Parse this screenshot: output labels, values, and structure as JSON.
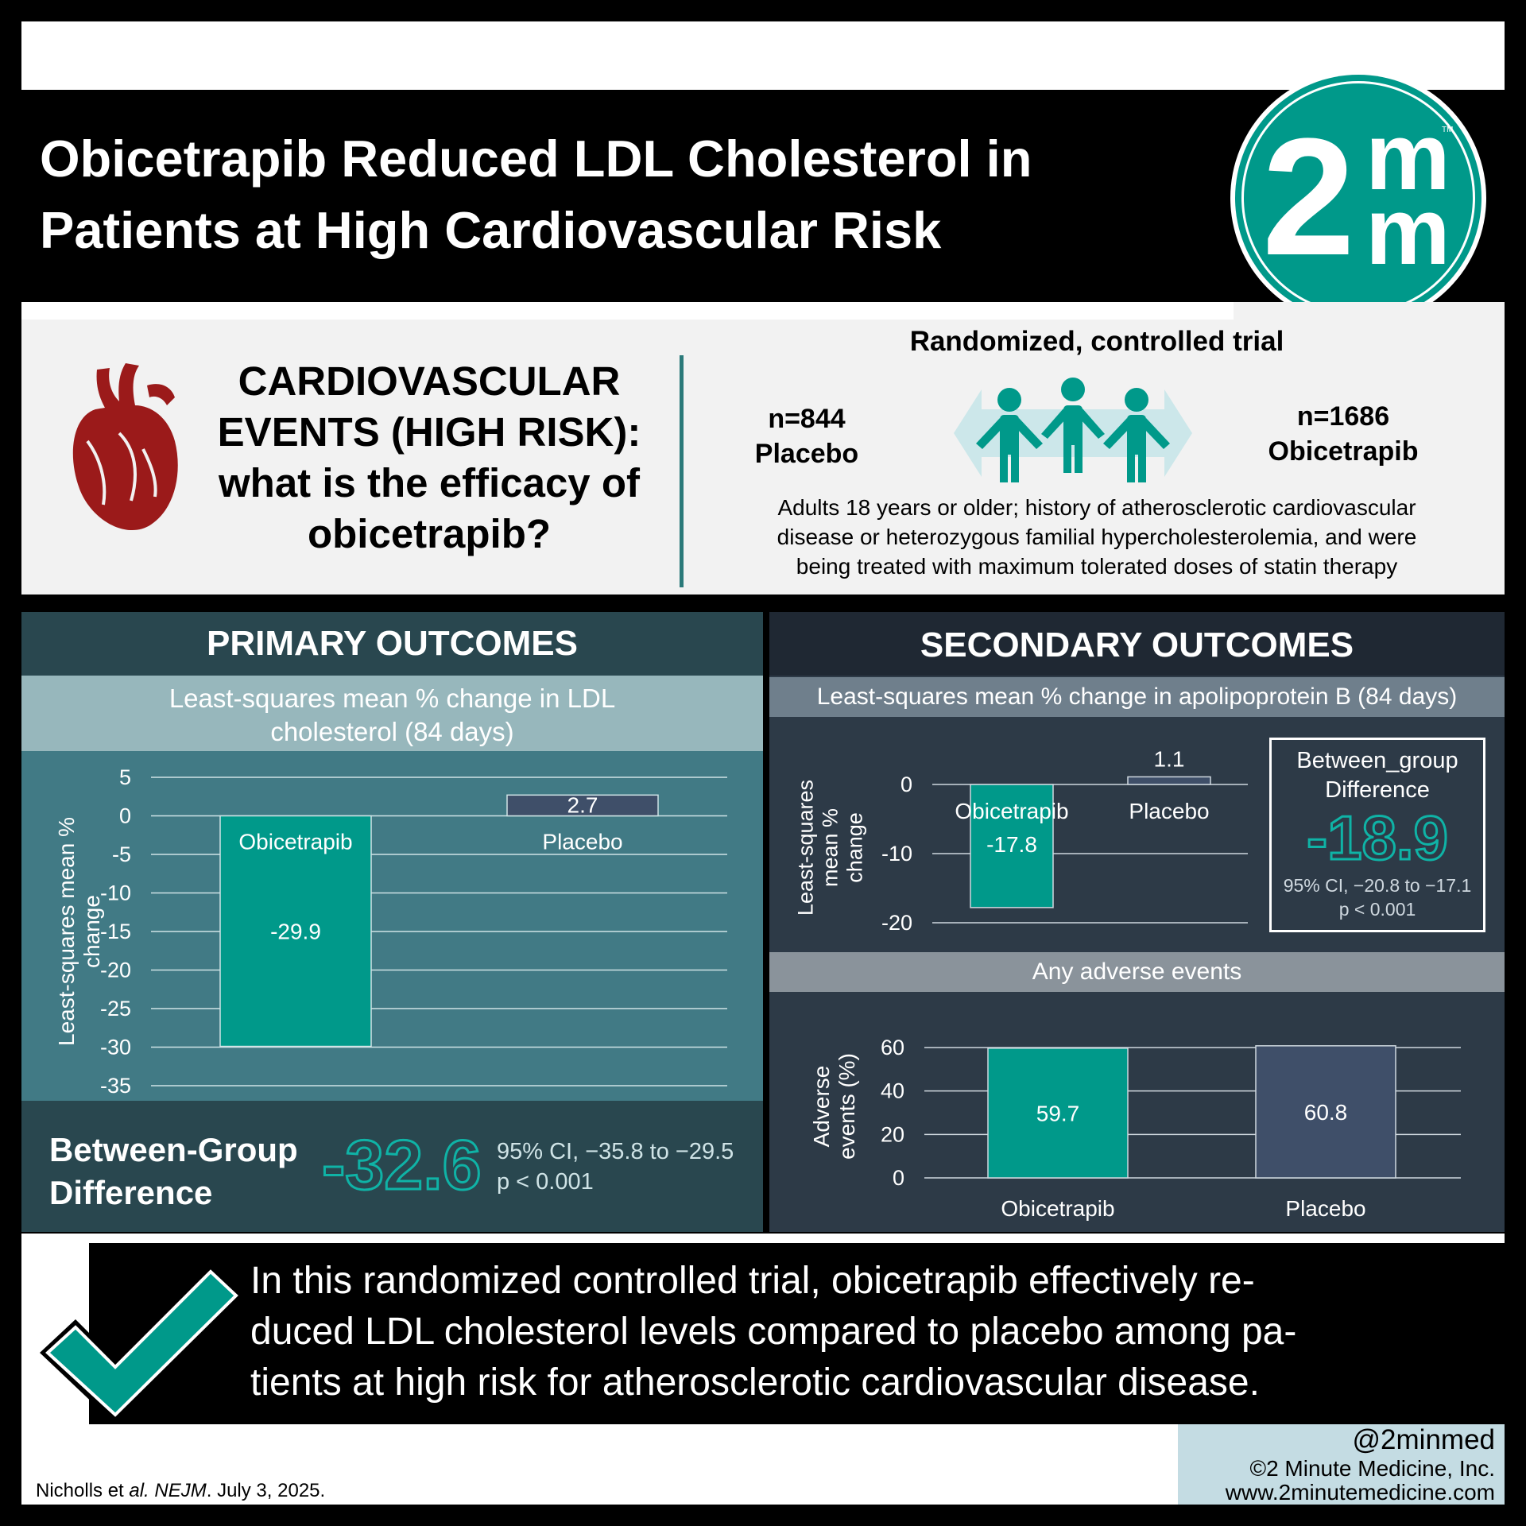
{
  "header": {
    "title_line1": "Obicetrapib Reduced LDL Cholesterol in",
    "title_line2": "Patients at High Cardiovascular Risk",
    "logo_main": "2",
    "logo_m_top": "m",
    "logo_m_bottom": "m",
    "logo_tm": "TM"
  },
  "question": {
    "line1": "CARDIOVASCULAR",
    "line2": "EVENTS (HIGH RISK):",
    "line3": "what is the efficacy of",
    "line4": "obicetrapib?"
  },
  "trial": {
    "title": "Randomized, controlled trial",
    "left_n": "n=844",
    "left_label": "Placebo",
    "right_n": "n=1686",
    "right_label": "Obicetrapib",
    "population_line1": "Adults 18 years or older; history of atherosclerotic cardiovascular",
    "population_line2": "disease or heterozygous familial hypercholesterolemia, and were",
    "population_line3": "being treated with maximum tolerated doses of statin therapy"
  },
  "primary": {
    "header": "PRIMARY OUTCOMES",
    "subtitle_line1": "Least-squares mean % change in LDL",
    "subtitle_line2": "cholesterol (84 days)",
    "ylabel_line1": "Least-squares mean %",
    "ylabel_line2": "change",
    "diff_label_line1": "Between-Group",
    "diff_label_line2": "Difference",
    "diff_value": "-32.6",
    "ci": "95% CI, −35.8 to −29.5",
    "p": "p < 0.001"
  },
  "secondary": {
    "header": "SECONDARY OUTCOMES",
    "apob_subtitle": "Least-squares mean % change in apolipoprotein B (84 days)",
    "apob_ylabel_line1": "Least-squares",
    "apob_ylabel_line2": "mean %",
    "apob_ylabel_line3": "change",
    "diff_label_line1": "Between_group",
    "diff_label_line2": "Difference",
    "diff_value": "-18.9",
    "ci": "95% CI, −20.8 to −17.1",
    "p": "p < 0.001",
    "ae_subtitle": "Any adverse events",
    "ae_ylabel_line1": "Adverse",
    "ae_ylabel_line2": "events (%)"
  },
  "conclusion": {
    "line1": "In this randomized controlled trial, obicetrapib effectively re-",
    "line2": "duced LDL cholesterol levels compared to placebo among pa-",
    "line3": "tients at high risk for atherosclerotic cardiovascular disease."
  },
  "footer": {
    "citation_prefix": "Nicholls et ",
    "citation_italic1": "al.",
    "citation_mid": " ",
    "citation_italic2": "NEJM",
    "citation_suffix": ". July 3, 2025.",
    "handle": "@2minmed",
    "copyright": "©2 Minute Medicine, Inc.",
    "website": "www.2minutemedicine.com"
  },
  "colors": {
    "teal": "#00998a",
    "slate": "#3f4f69",
    "primary_header_bg": "#29474f",
    "primary_chart_bg": "#417a85",
    "secondary_bg": "#2d3a47",
    "heart": "#9b1a1a"
  },
  "chart_data": [
    {
      "type": "bar",
      "categories": [
        "Obicetrapib",
        "Placebo"
      ],
      "values": [
        -29.9,
        2.7
      ],
      "value_labels": [
        "-29.9",
        "2.7"
      ],
      "ylim": [
        -35,
        5
      ],
      "yticks": [
        5,
        0,
        -5,
        -10,
        -15,
        -20,
        -25,
        -30,
        -35
      ],
      "colors": [
        "#00998a",
        "#3f4f69"
      ],
      "grid": true
    },
    {
      "type": "bar",
      "categories": [
        "Obicetrapib",
        "Placebo"
      ],
      "values": [
        -17.8,
        1.1
      ],
      "value_labels": [
        "-17.8",
        "1.1"
      ],
      "ylim": [
        -20,
        0
      ],
      "yticks": [
        0,
        -10,
        -20
      ],
      "colors": [
        "#00998a",
        "#3f4f69"
      ],
      "grid": true
    },
    {
      "type": "bar",
      "categories": [
        "Obicetrapib",
        "Placebo"
      ],
      "values": [
        59.7,
        60.8
      ],
      "value_labels": [
        "59.7",
        "60.8"
      ],
      "ylim": [
        0,
        60
      ],
      "yticks": [
        60,
        40,
        20,
        0
      ],
      "colors": [
        "#00998a",
        "#3f4f69"
      ],
      "grid": true
    }
  ]
}
